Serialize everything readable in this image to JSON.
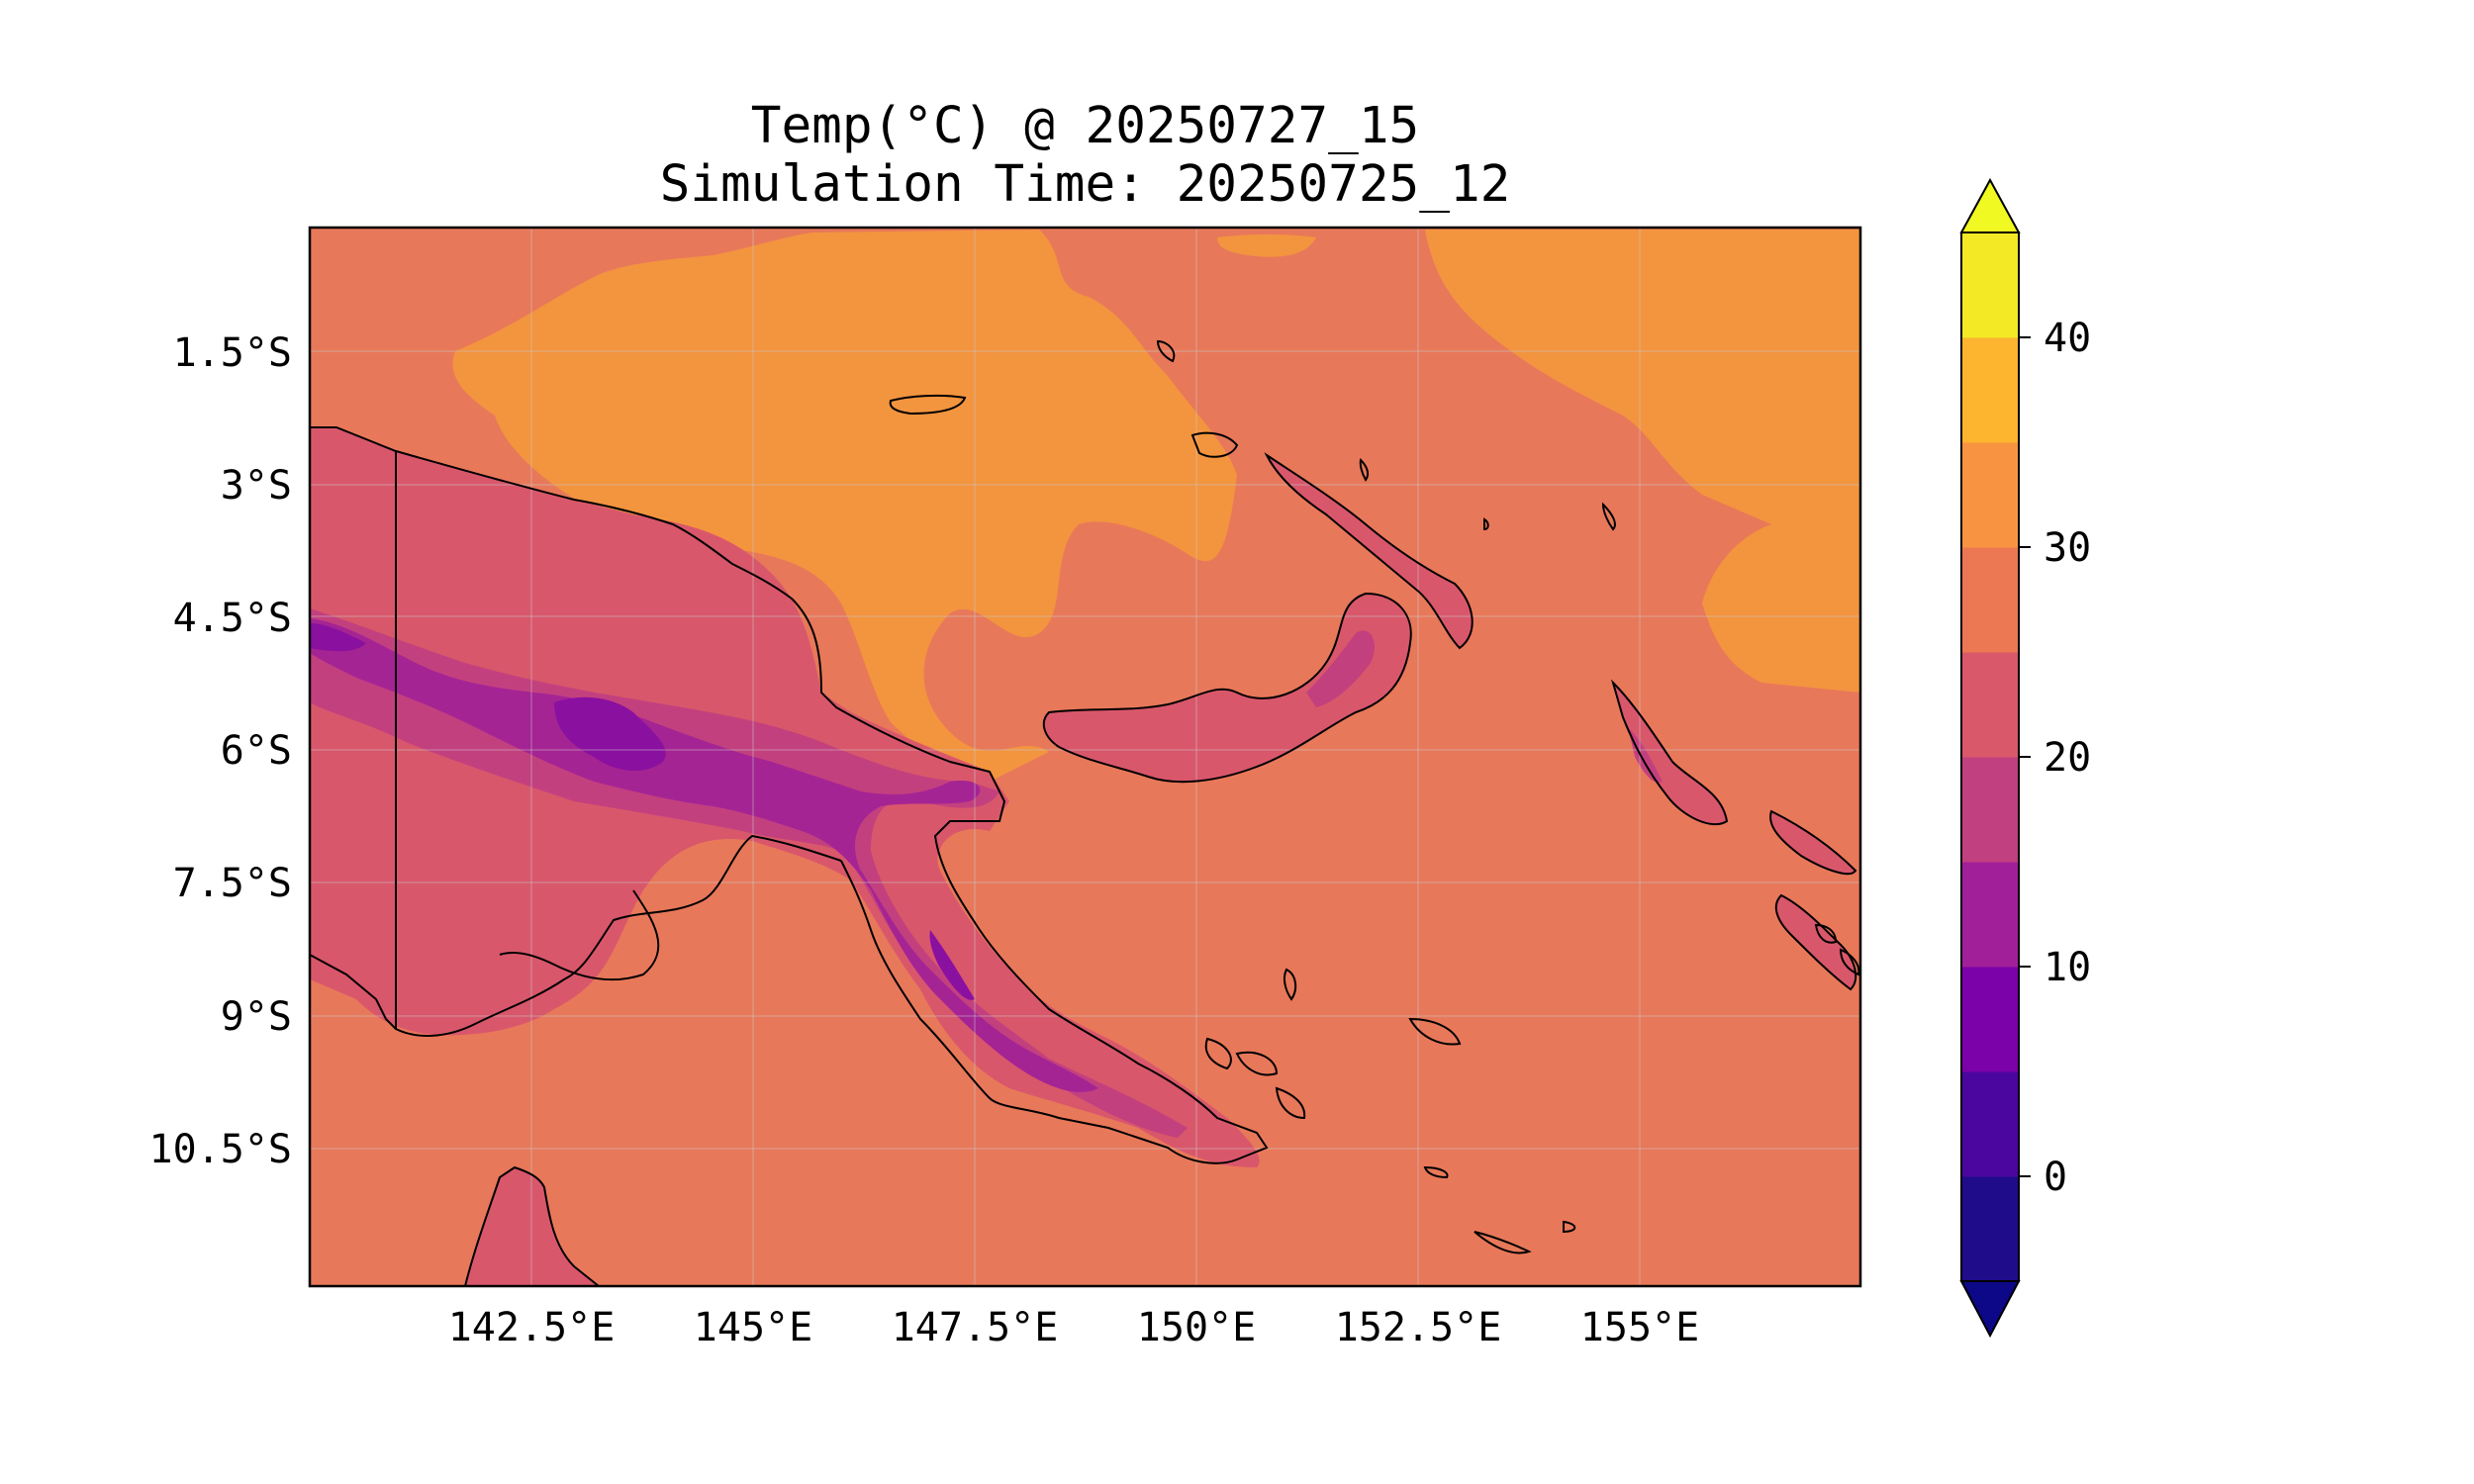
{
  "title": {
    "line1": "Temp(°C) @ 20250727_15",
    "line2": "Simulation Time: 20250725_12"
  },
  "map": {
    "region": "Papua New Guinea",
    "lat_range": [
      -12.0,
      0.0
    ],
    "lon_range": [
      140.0,
      157.5
    ],
    "lat_tick_labels": [
      "1.5°S",
      "3°S",
      "4.5°S",
      "6°S",
      "7.5°S",
      "9°S",
      "10.5°S"
    ],
    "lon_tick_labels": [
      "142.5°E",
      "145°E",
      "147.5°E",
      "150°E",
      "152.5°E",
      "155°E"
    ],
    "field": "Temp(°C)",
    "colors": {
      "band_25_30": "#e8785a",
      "band_30_35": "#f3943f",
      "band_20_25": "#d9576b",
      "band_15_20": "#c3407f",
      "band_10_15": "#a52494",
      "band_5_10": "#8a10a0",
      "coastline": "#000000"
    }
  },
  "colorbar": {
    "tick_labels": [
      "40",
      "30",
      "20",
      "10",
      "0"
    ],
    "levels": [
      -5,
      0,
      5,
      10,
      15,
      20,
      25,
      30,
      35,
      40,
      45
    ],
    "colors": [
      "#1f0c8a",
      "#4c06a0",
      "#7b02a8",
      "#a21f9a",
      "#c1407f",
      "#d9586a",
      "#ec7853",
      "#f89441",
      "#fdb42f",
      "#f3e925"
    ],
    "extend_under_color": "#0d0887",
    "extend_over_color": "#f0f921"
  }
}
